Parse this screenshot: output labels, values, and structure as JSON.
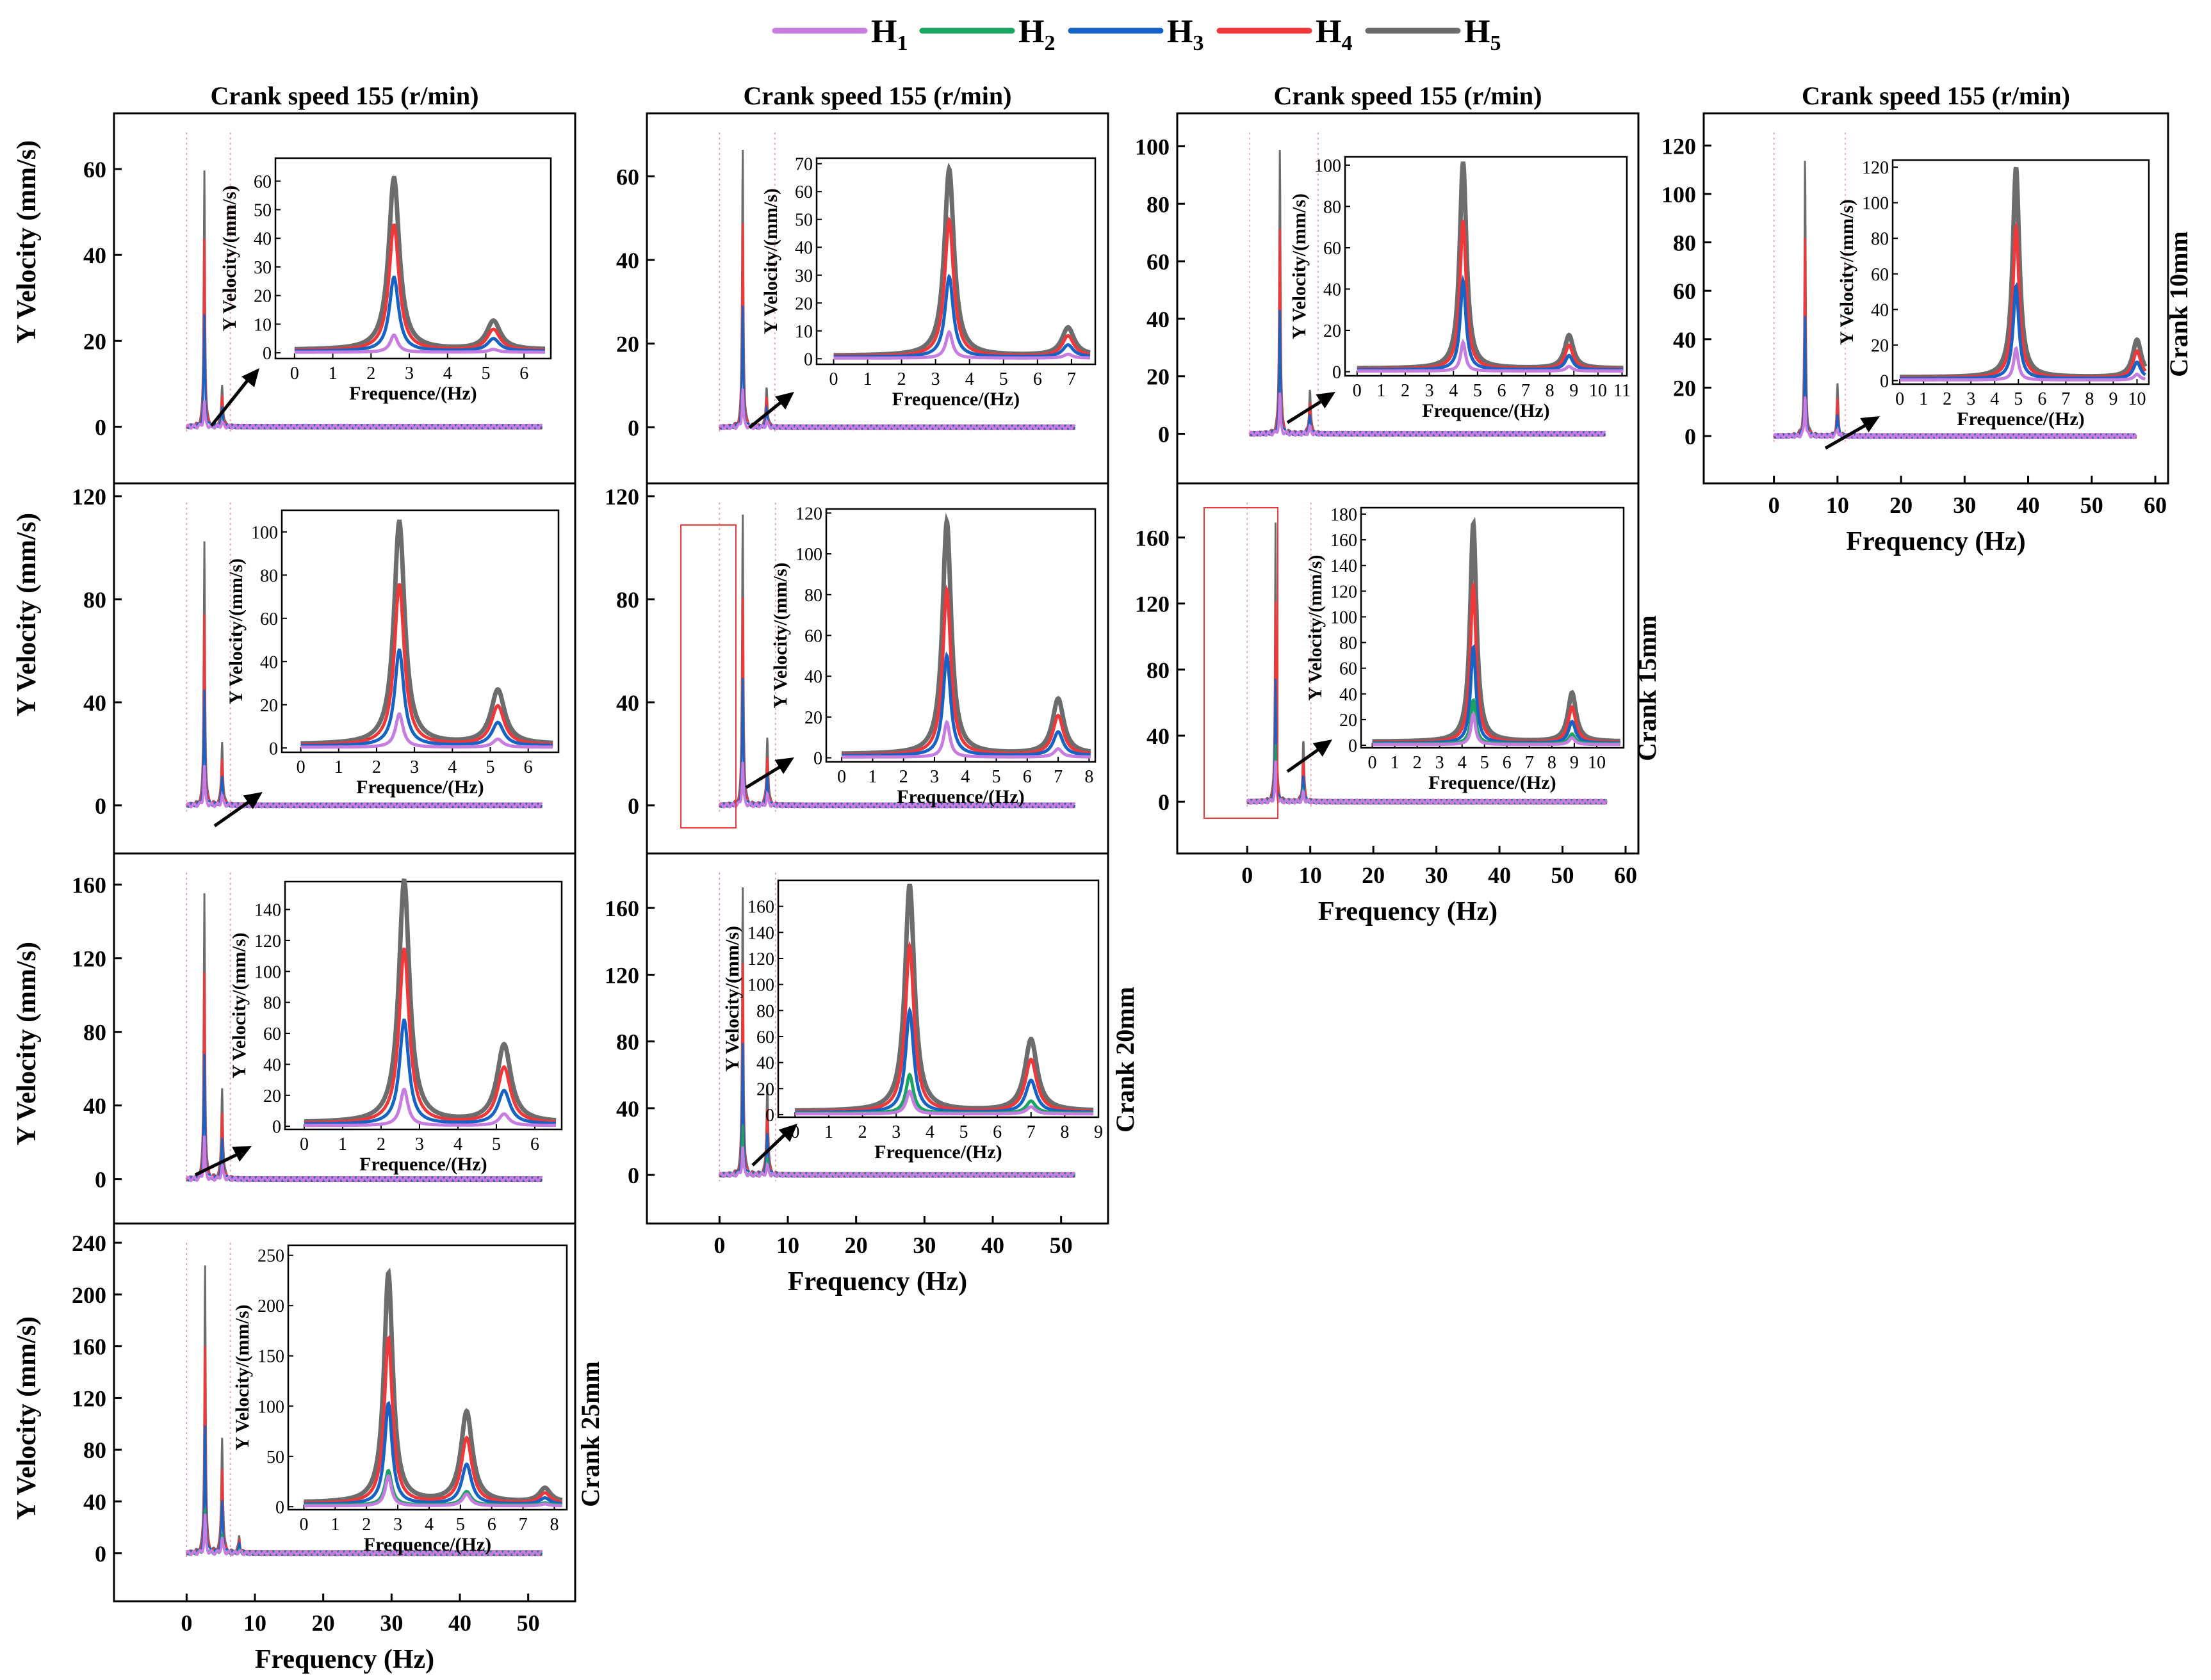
{
  "legend": [
    {
      "key": "H",
      "sub": "1",
      "color": "#c77ddf"
    },
    {
      "key": "H",
      "sub": "2",
      "color": "#19a463"
    },
    {
      "key": "H",
      "sub": "3",
      "color": "#1663c6"
    },
    {
      "key": "H",
      "sub": "4",
      "color": "#f0383a"
    },
    {
      "key": "H",
      "sub": "5",
      "color": "#6c6c6c"
    }
  ],
  "column_titles": [
    "Crank speed 155 (r/min)",
    "Crank speed 155 (r/min)",
    "Crank speed 155 (r/min)",
    "Crank speed 155 (r/min)"
  ],
  "row_labels": [
    "Crank 10mm",
    "Crank 15mm",
    "Crank 20mm",
    "Crank 25mm"
  ],
  "ylabel": "Y Velocity (mm/s)",
  "xlabel": "Frequency (Hz)",
  "inset_ylabel": "Y Velocity/(mm/s)",
  "inset_xlabel": "Frequence/(Hz)",
  "chart_data": [
    {
      "type": "line",
      "title": "Crank speed 155 (r/min)",
      "xlim": [
        -5,
        55
      ],
      "ylim": [
        -5,
        70
      ],
      "xticks": [],
      "yticks": [
        0,
        20,
        40,
        60
      ],
      "ylabel": "Y Velocity (mm/s)",
      "peaks": [
        [
          2.6,
          60
        ],
        [
          5.2,
          10
        ]
      ],
      "ratios": [
        0.1,
        0.0,
        0.43,
        0.73,
        1.0
      ],
      "inset": {
        "xlim": [
          -0.5,
          6.7
        ],
        "ylim": [
          -2,
          68
        ],
        "xticks": [
          0,
          1,
          2,
          3,
          4,
          5,
          6
        ],
        "yticks": [
          0,
          10,
          20,
          30,
          40,
          50,
          60
        ]
      }
    },
    {
      "type": "line",
      "title": "Crank speed 155 (r/min)",
      "xlim": [
        -5,
        55
      ],
      "ylim": [
        -5,
        72
      ],
      "xticks": [],
      "yticks": [
        0,
        20,
        40,
        60
      ],
      "peaks": [
        [
          3.4,
          67
        ],
        [
          6.9,
          10
        ]
      ],
      "ratios": [
        0.14,
        0.0,
        0.43,
        0.73,
        1.0
      ],
      "inset": {
        "xlim": [
          -0.5,
          7.7
        ],
        "ylim": [
          -2,
          72
        ],
        "xticks": [
          0,
          1,
          2,
          3,
          4,
          5,
          6,
          7
        ],
        "yticks": [
          0,
          10,
          20,
          30,
          40,
          50,
          60,
          70
        ]
      }
    },
    {
      "type": "line",
      "title": "Crank speed 155 (r/min)",
      "xlim": [
        -5,
        55
      ],
      "ylim": [
        -5,
        107
      ],
      "xticks": [],
      "yticks": [
        0,
        20,
        40,
        60,
        80,
        100
      ],
      "peaks": [
        [
          4.4,
          100
        ],
        [
          8.8,
          16
        ]
      ],
      "ratios": [
        0.14,
        0.0,
        0.43,
        0.72,
        1.0
      ],
      "inset": {
        "xlim": [
          -0.5,
          11.2
        ],
        "ylim": [
          -2,
          104
        ],
        "xticks": [
          0,
          1,
          2,
          3,
          4,
          5,
          6,
          7,
          8,
          9,
          10,
          11
        ],
        "yticks": [
          0,
          20,
          40,
          60,
          80,
          100
        ]
      }
    },
    {
      "type": "line",
      "title": "Crank speed 155 (r/min)",
      "xlim": [
        -5,
        60
      ],
      "ylim": [
        -5,
        128
      ],
      "xticks": [
        0,
        10,
        20,
        30,
        40,
        50,
        60
      ],
      "yticks": [
        0,
        20,
        40,
        60,
        80,
        100,
        120
      ],
      "xlabel": "Frequency (Hz)",
      "peaks": [
        [
          4.9,
          118
        ],
        [
          10.0,
          21
        ]
      ],
      "ratios": [
        0.15,
        0.0,
        0.44,
        0.72,
        1.0
      ],
      "inset": {
        "xlim": [
          -0.3,
          10.5
        ],
        "ylim": [
          -2,
          124
        ],
        "xticks": [
          0,
          1,
          2,
          3,
          4,
          5,
          6,
          7,
          8,
          9,
          10
        ],
        "yticks": [
          0,
          20,
          40,
          60,
          80,
          100,
          120
        ]
      }
    },
    {
      "type": "line",
      "xlim": [
        -5,
        55
      ],
      "ylim": [
        -5,
        120
      ],
      "xticks": [],
      "yticks": [
        0,
        40,
        80,
        120
      ],
      "ylabel": "Y Velocity (mm/s)",
      "peaks": [
        [
          2.6,
          103
        ],
        [
          5.2,
          25
        ]
      ],
      "ratios": [
        0.15,
        0.0,
        0.43,
        0.72,
        1.0
      ],
      "inset": {
        "xlim": [
          -0.5,
          6.8
        ],
        "ylim": [
          -2,
          110
        ],
        "xticks": [
          0,
          1,
          2,
          3,
          4,
          5,
          6
        ],
        "yticks": [
          0,
          20,
          40,
          60,
          80,
          100
        ]
      }
    },
    {
      "type": "line",
      "xlim": [
        -5,
        55
      ],
      "ylim": [
        -5,
        120
      ],
      "xticks": [],
      "yticks": [
        0,
        40,
        80,
        120
      ],
      "peaks": [
        [
          3.4,
          114
        ],
        [
          7.0,
          27
        ]
      ],
      "ratios": [
        0.15,
        0.0,
        0.43,
        0.71,
        1.0
      ],
      "inset": {
        "xlim": [
          -0.5,
          8.2
        ],
        "ylim": [
          -2,
          122
        ],
        "xticks": [
          0,
          1,
          2,
          3,
          4,
          5,
          6,
          7,
          8
        ],
        "yticks": [
          0,
          20,
          40,
          60,
          80,
          100,
          120
        ]
      }
    },
    {
      "type": "line",
      "xlim": [
        -5,
        60
      ],
      "ylim": [
        -10,
        185
      ],
      "xticks": [
        0,
        10,
        20,
        30,
        40,
        50,
        60
      ],
      "yticks": [
        0,
        40,
        80,
        120,
        160
      ],
      "xlabel": "Frequency (Hz)",
      "peaks": [
        [
          4.5,
          170
        ],
        [
          8.9,
          38
        ]
      ],
      "ratios": [
        0.14,
        0.2,
        0.44,
        0.72,
        1.0
      ],
      "inset": {
        "xlim": [
          -0.5,
          11.2
        ],
        "ylim": [
          -2,
          185
        ],
        "xticks": [
          0,
          1,
          2,
          3,
          4,
          5,
          6,
          7,
          8,
          9,
          10
        ],
        "yticks": [
          0,
          20,
          40,
          60,
          80,
          100,
          120,
          140,
          160,
          180
        ]
      }
    },
    {
      "type": "line",
      "xlim": [
        -5,
        55
      ],
      "ylim": [
        -5,
        170
      ],
      "xticks": [],
      "yticks": [
        0,
        40,
        80,
        120,
        160
      ],
      "ylabel": "Y Velocity (mm/s)",
      "peaks": [
        [
          2.6,
          156
        ],
        [
          5.2,
          50
        ]
      ],
      "ratios": [
        0.15,
        0.0,
        0.43,
        0.72,
        1.0
      ],
      "inset": {
        "xlim": [
          -0.5,
          6.7
        ],
        "ylim": [
          -2,
          158
        ],
        "xticks": [
          0,
          1,
          2,
          3,
          4,
          5,
          6
        ],
        "yticks": [
          0,
          20,
          40,
          60,
          80,
          100,
          120,
          140
        ]
      }
    },
    {
      "type": "line",
      "xlim": [
        -5,
        55
      ],
      "ylim": [
        -8,
        185
      ],
      "xticks": [
        0,
        10,
        20,
        30,
        40,
        50
      ],
      "yticks": [
        0,
        40,
        80,
        120,
        160
      ],
      "xlabel": "Frequency (Hz)",
      "peaks": [
        [
          3.4,
          174
        ],
        [
          7.0,
          55
        ]
      ],
      "ratios": [
        0.1,
        0.17,
        0.45,
        0.73,
        1.0
      ],
      "inset": {
        "xlim": [
          -0.5,
          9.0
        ],
        "ylim": [
          -2,
          180
        ],
        "xticks": [
          0,
          1,
          2,
          3,
          4,
          5,
          6,
          7,
          8,
          9
        ],
        "yticks": [
          0,
          20,
          40,
          60,
          80,
          100,
          120,
          140,
          160
        ]
      }
    },
    {
      "type": "line",
      "xlim": [
        -5,
        55
      ],
      "ylim": [
        -10,
        245
      ],
      "xticks": [
        0,
        10,
        20,
        30,
        40,
        50
      ],
      "yticks": [
        0,
        40,
        80,
        120,
        160,
        200,
        240
      ],
      "ylabel": "Y Velocity (mm/s)",
      "xlabel": "Frequency (Hz)",
      "peaks": [
        [
          2.7,
          228
        ],
        [
          5.2,
          90
        ],
        [
          7.7,
          14
        ]
      ],
      "ratios": [
        0.13,
        0.15,
        0.44,
        0.72,
        1.0
      ],
      "inset": {
        "xlim": [
          -0.5,
          8.4
        ],
        "ylim": [
          -3,
          260
        ],
        "xticks": [
          0,
          1,
          2,
          3,
          4,
          5,
          6,
          7,
          8
        ],
        "yticks": [
          0,
          50,
          100,
          150,
          200,
          250
        ]
      }
    }
  ]
}
